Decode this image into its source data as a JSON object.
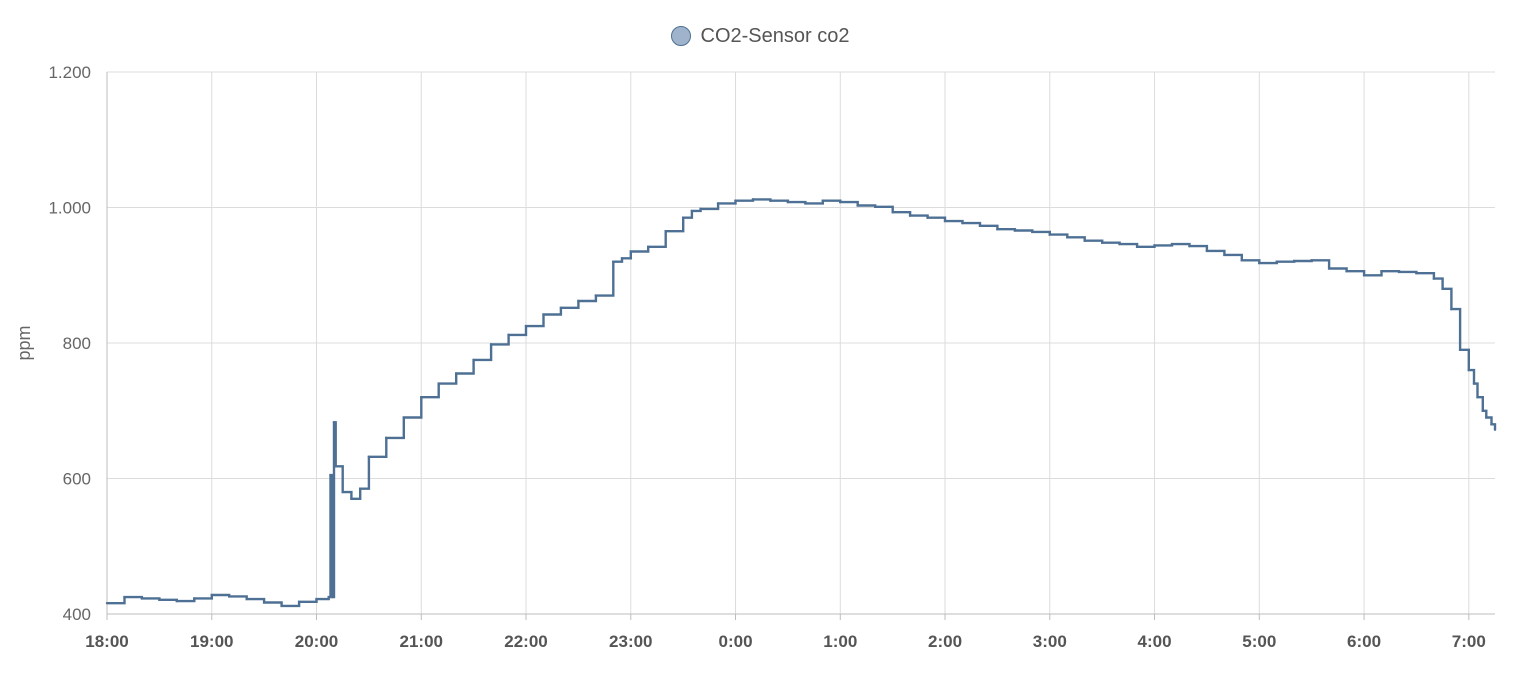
{
  "legend": {
    "label": "CO2-Sensor co2",
    "color": "#4e7094",
    "fill": "#9fb4cc"
  },
  "chart_data": {
    "type": "line",
    "series": [
      {
        "name": "CO2-Sensor co2",
        "x": [
          "18:00",
          "18:10",
          "18:20",
          "18:30",
          "18:40",
          "18:50",
          "19:00",
          "19:10",
          "19:20",
          "19:30",
          "19:40",
          "19:50",
          "20:00",
          "20:07",
          "20:08",
          "20:09",
          "20:10",
          "20:11",
          "20:15",
          "20:20",
          "20:25",
          "20:30",
          "20:40",
          "20:50",
          "21:00",
          "21:10",
          "21:20",
          "21:30",
          "21:40",
          "21:50",
          "22:00",
          "22:10",
          "22:20",
          "22:30",
          "22:40",
          "22:50",
          "22:55",
          "23:00",
          "23:10",
          "23:20",
          "23:30",
          "23:35",
          "23:40",
          "23:50",
          "0:00",
          "0:10",
          "0:20",
          "0:30",
          "0:40",
          "0:50",
          "1:00",
          "1:10",
          "1:20",
          "1:30",
          "1:40",
          "1:50",
          "2:00",
          "2:10",
          "2:20",
          "2:30",
          "2:40",
          "2:50",
          "3:00",
          "3:10",
          "3:20",
          "3:30",
          "3:40",
          "3:50",
          "4:00",
          "4:10",
          "4:20",
          "4:30",
          "4:40",
          "4:50",
          "5:00",
          "5:10",
          "5:20",
          "5:30",
          "5:40",
          "5:50",
          "6:00",
          "6:10",
          "6:20",
          "6:30",
          "6:40",
          "6:45",
          "6:50",
          "6:55",
          "7:00",
          "7:03",
          "7:05",
          "7:08",
          "7:10",
          "7:13",
          "7:15"
        ],
        "y": [
          416,
          425,
          423,
          421,
          419,
          423,
          428,
          426,
          422,
          417,
          412,
          418,
          422,
          425,
          605,
          425,
          683,
          618,
          580,
          570,
          585,
          632,
          660,
          690,
          720,
          740,
          755,
          775,
          798,
          812,
          825,
          842,
          852,
          862,
          870,
          920,
          925,
          935,
          942,
          965,
          985,
          995,
          998,
          1006,
          1010,
          1012,
          1010,
          1008,
          1006,
          1010,
          1008,
          1003,
          1001,
          993,
          988,
          985,
          980,
          977,
          973,
          968,
          966,
          964,
          960,
          956,
          951,
          948,
          946,
          942,
          944,
          946,
          943,
          936,
          930,
          922,
          918,
          920,
          921,
          922,
          910,
          906,
          900,
          906,
          905,
          903,
          895,
          880,
          850,
          790,
          760,
          740,
          720,
          700,
          690,
          680,
          672
        ]
      }
    ],
    "title": "",
    "xlabel": "",
    "ylabel": "ppm",
    "xticks": [
      "18:00",
      "19:00",
      "20:00",
      "21:00",
      "22:00",
      "23:00",
      "0:00",
      "1:00",
      "2:00",
      "3:00",
      "4:00",
      "5:00",
      "6:00",
      "7:00"
    ],
    "yticks": [
      400,
      600,
      800,
      1000,
      1200
    ],
    "ytick_labels": [
      "400",
      "600",
      "800",
      "1.000",
      "1.200"
    ],
    "ylim": [
      400,
      1200
    ],
    "xlim": [
      "18:00",
      "7:15"
    ],
    "grid": true,
    "legend_position": "top-center",
    "step": true
  }
}
